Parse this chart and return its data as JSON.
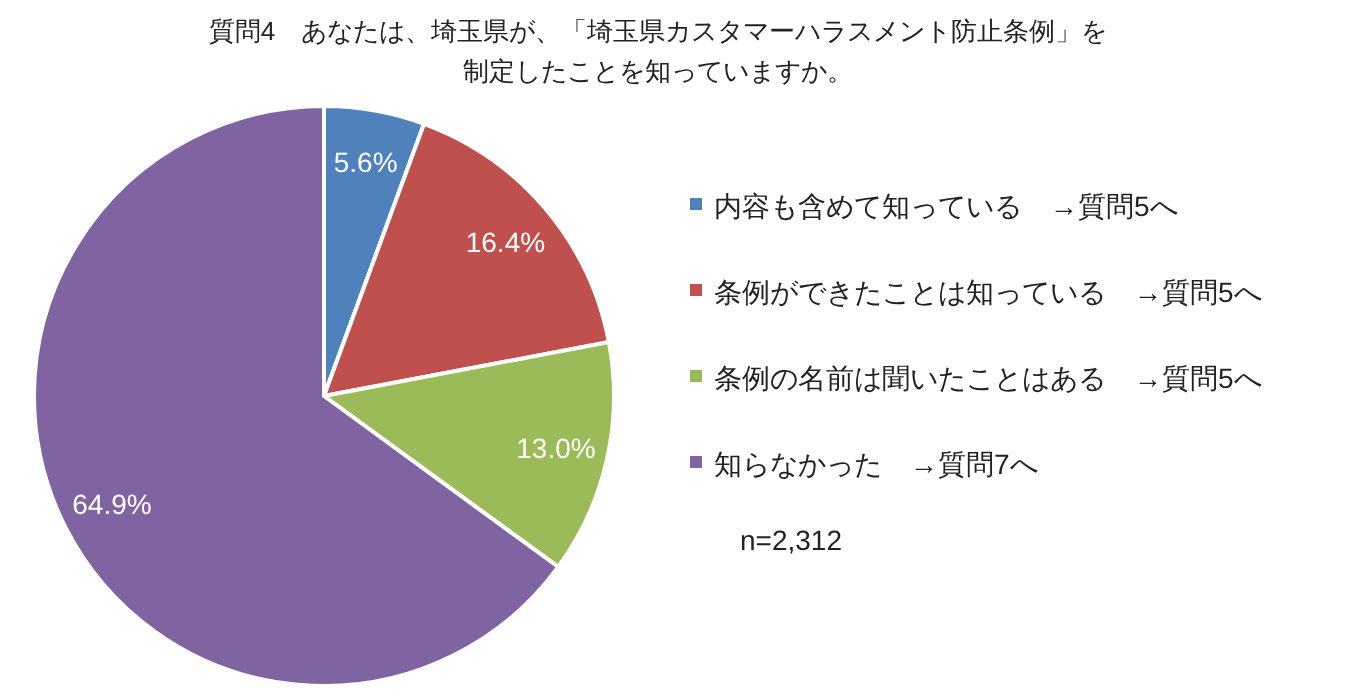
{
  "chart_data": {
    "type": "pie",
    "title": "質問4　あなたは、埼玉県が、「埼玉県カスタマーハラスメント防止条例」を制定したことを知っていますか。",
    "categories": [
      "内容も含めて知っている　→質問5へ",
      "条例ができたことは知っている　→質問5へ",
      "条例の名前は聞いたことはある　→質問5へ",
      "知らなかった　→質問7へ"
    ],
    "values": [
      5.6,
      16.4,
      13.0,
      64.9
    ],
    "colors": [
      "#4f81bd",
      "#c0504d",
      "#9bbb59",
      "#8064a2"
    ],
    "value_labels": [
      "5.6%",
      "16.4%",
      "13.0%",
      "64.9%"
    ],
    "legend": "right",
    "annotations": [
      "n=2,312"
    ]
  }
}
